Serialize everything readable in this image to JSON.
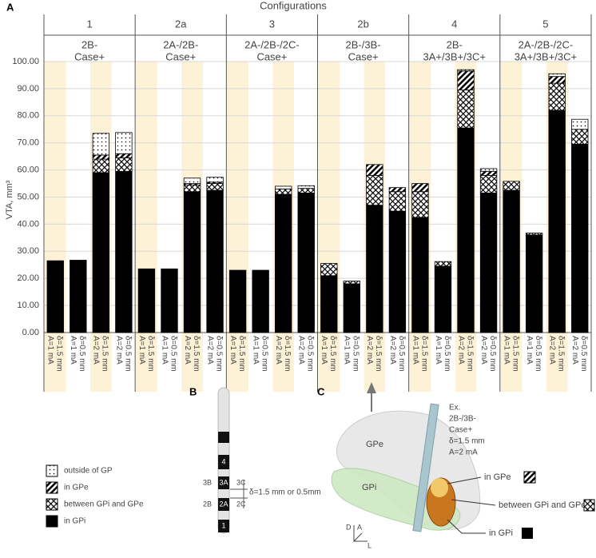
{
  "chart_data": {
    "type": "bar",
    "stacked": true,
    "panel_label": "A",
    "title": "Configurations",
    "y_label": "VTA, mm³",
    "groups": [
      {
        "name": "1",
        "label": [
          "2B-",
          "Case+"
        ]
      },
      {
        "name": "2a",
        "label": [
          "2A-/2B-",
          "Case+"
        ]
      },
      {
        "name": "3",
        "label": [
          "2A-/2B-/2C-",
          "Case+"
        ]
      },
      {
        "name": "2b",
        "label": [
          "2B-/3B-",
          "Case+"
        ]
      },
      {
        "name": "4",
        "label": [
          "2B-",
          "3A+/3B+/3C+"
        ]
      },
      {
        "name": "5",
        "label": [
          "2A-/2B-/2C-",
          "3A+/3B+/3C+"
        ]
      }
    ],
    "categories": [
      [
        "δ=1.5 mm",
        "A=1 mA"
      ],
      [
        "δ=0.5 mm",
        "A=1 mA"
      ],
      [
        "δ=1.5 mm",
        "A=2 mA"
      ],
      [
        "δ=0.5 mm",
        "A=2 mA"
      ],
      [
        "δ=1.5 mm",
        "A=1 mA"
      ],
      [
        "δ=0.5 mm",
        "A=1 mA"
      ],
      [
        "δ=1.5 mm",
        "A=2 mA"
      ],
      [
        "δ=0.5 mm",
        "A=2 mA"
      ],
      [
        "δ=1.5 mm",
        "A=1 mA"
      ],
      [
        "δ=0.5 mm",
        "A=1 mA"
      ],
      [
        "δ=1.5 mm",
        "A=2 mA"
      ],
      [
        "δ=0.5 mm",
        "A=2 mA"
      ],
      [
        "δ=1.5 mm",
        "A=1 mA"
      ],
      [
        "δ=0.5 mm",
        "A=1 mA"
      ],
      [
        "δ=1.5 mm",
        "A=2 mA"
      ],
      [
        "δ=0.5 mm",
        "A=2 mA"
      ],
      [
        "δ=1.5 mm",
        "A=1 mA"
      ],
      [
        "δ=0.5 mm",
        "A=1 mA"
      ],
      [
        "δ=1.5 mm",
        "A=2 mA"
      ],
      [
        "δ=0.5 mm",
        "A=2 mA"
      ],
      [
        "δ=1.5 mm",
        "A=1 mA"
      ],
      [
        "δ=0.5 mm",
        "A=1 mA"
      ],
      [
        "δ=1.5 mm",
        "A=2 mA"
      ],
      [
        "δ=0.5 mm",
        "A=2 mA"
      ]
    ],
    "series": [
      {
        "name": "in GPi",
        "pattern": "solid",
        "values": [
          26.5,
          26.7,
          59,
          59.5,
          23.5,
          23.5,
          52,
          52.5,
          23,
          23,
          51,
          51.5,
          21,
          18,
          47,
          44.8,
          42.5,
          24.5,
          75.5,
          51.5,
          52.5,
          36,
          82,
          69.5
        ]
      },
      {
        "name": "between GPi and GPe",
        "pattern": "crosshatch",
        "values": [
          0,
          0,
          5,
          5,
          0,
          0,
          2.5,
          2.5,
          0,
          0,
          2,
          1.7,
          4.5,
          1,
          11,
          7.2,
          9.5,
          1.7,
          14,
          6.5,
          3.3,
          0.7,
          10,
          5.5
        ]
      },
      {
        "name": "in GPe",
        "pattern": "diagonal",
        "values": [
          0,
          0,
          1.5,
          1.5,
          0,
          0,
          0.5,
          0.5,
          0,
          0,
          0,
          0,
          0,
          0,
          4,
          1.5,
          3,
          0,
          7,
          1.5,
          0,
          0,
          2.5,
          0
        ]
      },
      {
        "name": "outside of GP",
        "pattern": "dots",
        "values": [
          0,
          0,
          8,
          7.8,
          0,
          0,
          2,
          1.8,
          0,
          0,
          1,
          1,
          0,
          0,
          0,
          0,
          0,
          0,
          0.5,
          1,
          0,
          0,
          1,
          3.7
        ]
      }
    ],
    "ylim": [
      0,
      100
    ],
    "yticks": [
      {
        "value": 0,
        "label": "0.00"
      },
      {
        "value": 10,
        "label": "10.00"
      },
      {
        "value": 20,
        "label": "20.00"
      },
      {
        "value": 30,
        "label": "30.00"
      },
      {
        "value": 40,
        "label": "40.00"
      },
      {
        "value": 50,
        "label": "50.00"
      },
      {
        "value": 60,
        "label": "60.00"
      },
      {
        "value": 70,
        "label": "70.00"
      },
      {
        "value": 80,
        "label": "80.00"
      },
      {
        "value": 90,
        "label": "90.00"
      },
      {
        "value": 100,
        "label": "100.00"
      }
    ],
    "grid": true
  },
  "panel_b": {
    "label": "B",
    "contacts": [
      "4",
      "3B",
      "3A",
      "3C",
      "2B",
      "2A",
      "2C",
      "1"
    ],
    "spacing": "δ=1.5 mm or 0.5mm"
  },
  "panel_c": {
    "label": "C",
    "example": [
      "Ex.",
      "2B-/3B-",
      "Case+",
      "δ=1.5 mm",
      "A=2 mA"
    ],
    "regions": [
      "GPe",
      "GPi"
    ],
    "callouts": [
      "in GPe",
      "between GPi and GPe",
      "in GPi"
    ],
    "axes": [
      "D",
      "A",
      "L"
    ]
  }
}
